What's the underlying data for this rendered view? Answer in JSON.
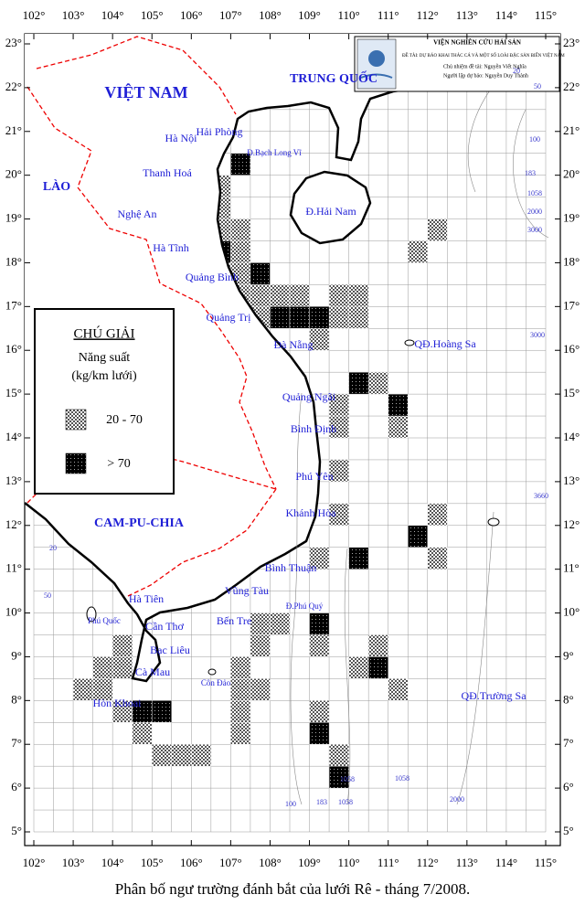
{
  "map": {
    "caption": "Phân bố ngư trường đánh bắt của lưới Rê - tháng 7/2008.",
    "header": {
      "institute": "VIỆN NGHIÊN CỨU HẢI SẢN",
      "project": "ĐỀ TÀI: DỰ BÁO KHAI THÁC CÁ VÀ MỘT SỐ LOÀI ĐẶC SẢN BIỂN VIỆT NAM",
      "lead": "Chủ nhiệm đề tài: Nguyễn Viết Nghĩa",
      "author": "Người lập dự báo: Nguyễn Duy Thành"
    },
    "lon_ticks": [
      {
        "value": 102,
        "label": "102°"
      },
      {
        "value": 103,
        "label": "103°"
      },
      {
        "value": 104,
        "label": "104°"
      },
      {
        "value": 105,
        "label": "105°"
      },
      {
        "value": 106,
        "label": "106°"
      },
      {
        "value": 107,
        "label": "107°"
      },
      {
        "value": 108,
        "label": "108°"
      },
      {
        "value": 109,
        "label": "109°"
      },
      {
        "value": 110,
        "label": "110°"
      },
      {
        "value": 111,
        "label": "111°"
      },
      {
        "value": 112,
        "label": "112°"
      },
      {
        "value": 113,
        "label": "113°"
      },
      {
        "value": 114,
        "label": "114°"
      },
      {
        "value": 115,
        "label": "115°"
      }
    ],
    "lat_ticks": [
      {
        "value": 5,
        "label": "5°"
      },
      {
        "value": 6,
        "label": "6°"
      },
      {
        "value": 7,
        "label": "7°"
      },
      {
        "value": 8,
        "label": "8°"
      },
      {
        "value": 9,
        "label": "9°"
      },
      {
        "value": 10,
        "label": "10°"
      },
      {
        "value": 11,
        "label": "11°"
      },
      {
        "value": 12,
        "label": "12°"
      },
      {
        "value": 13,
        "label": "13°"
      },
      {
        "value": 14,
        "label": "14°"
      },
      {
        "value": 15,
        "label": "15°"
      },
      {
        "value": 16,
        "label": "16°"
      },
      {
        "value": 17,
        "label": "17°"
      },
      {
        "value": 18,
        "label": "18°"
      },
      {
        "value": 19,
        "label": "19°"
      },
      {
        "value": 20,
        "label": "20°"
      },
      {
        "value": 21,
        "label": "21°"
      },
      {
        "value": 22,
        "label": "22°"
      },
      {
        "value": 23,
        "label": "23°"
      }
    ],
    "countries": [
      "VIỆT NAM",
      "TRUNG QUỐC",
      "LÀO",
      "CAM-PU-CHIA"
    ],
    "places": [
      "Hà Nội",
      "Hải Phòng",
      "Đ.Bạch Long Vĩ",
      "Thanh Hoá",
      "Nghệ An",
      "Hà Tĩnh",
      "Quảng Bình",
      "Quảng Trị",
      "Đà Nẵng",
      "Quảng Ngãi",
      "Bình Định",
      "Phú Yên",
      "Khánh Hòa",
      "Bình Thuận",
      "Vũng Tàu",
      "Đ.Phú Quý",
      "Bến Tre",
      "Cần Thơ",
      "Bạc Liêu",
      "Cà Mau",
      "Hà Tiên",
      "Phú Quốc",
      "Hòn Khoai",
      "Côn Đảo",
      "Đ.Hải Nam",
      "QĐ.Hoàng Sa",
      "QĐ.Trường Sa"
    ],
    "depth_labels": [
      20,
      50,
      100,
      183,
      1058,
      2000,
      3000,
      3000,
      3660,
      20,
      50,
      100,
      183,
      1058,
      1058,
      1058,
      2000
    ],
    "legend": {
      "title": "CHÚ GIẢI",
      "subtitle": "Năng suất",
      "unit": "(kg/km lưới)",
      "items": [
        {
          "label": "20 - 70",
          "cells": [
            [
              106.5,
              19.5
            ],
            [
              106.5,
              19
            ],
            [
              106.5,
              18.5
            ],
            [
              107,
              18.5
            ],
            [
              107,
              18
            ],
            [
              106.5,
              17.5
            ],
            [
              107,
              17.5
            ],
            [
              107,
              17
            ],
            [
              107.5,
              17
            ],
            [
              108,
              17
            ],
            [
              108.5,
              17
            ],
            [
              109.5,
              17
            ],
            [
              110,
              17
            ],
            [
              107,
              16.5
            ],
            [
              107.5,
              16.5
            ],
            [
              109.5,
              16.5
            ],
            [
              110,
              16.5
            ],
            [
              109,
              16
            ],
            [
              110.5,
              15
            ],
            [
              109.5,
              14.5
            ],
            [
              109.5,
              14
            ],
            [
              111,
              14
            ],
            [
              109.5,
              13
            ],
            [
              109.5,
              12
            ],
            [
              112,
              12
            ],
            [
              112,
              11
            ],
            [
              109,
              11
            ],
            [
              108,
              9.5
            ],
            [
              107.5,
              9.5
            ],
            [
              107.5,
              9
            ],
            [
              107,
              8.5
            ],
            [
              107,
              8
            ],
            [
              107.5,
              8
            ],
            [
              107,
              7.5
            ],
            [
              107,
              7
            ],
            [
              109,
              9
            ],
            [
              110.5,
              9
            ],
            [
              110,
              8.5
            ],
            [
              111,
              8
            ],
            [
              109,
              7.5
            ],
            [
              109.5,
              6.5
            ],
            [
              104,
              9
            ],
            [
              103.5,
              8.5
            ],
            [
              104,
              8.5
            ],
            [
              103,
              8
            ],
            [
              103.5,
              8
            ],
            [
              104,
              7.5
            ],
            [
              104.5,
              7
            ],
            [
              105,
              6.5
            ],
            [
              105.5,
              6.5
            ],
            [
              106,
              6.5
            ],
            [
              112,
              18.5
            ],
            [
              111.5,
              18
            ]
          ]
        },
        {
          "label": "> 70",
          "cells": [
            [
              107,
              20
            ],
            [
              106.5,
              18
            ],
            [
              107.5,
              17.5
            ],
            [
              108,
              16.5
            ],
            [
              108.5,
              16.5
            ],
            [
              109,
              16.5
            ],
            [
              110,
              15
            ],
            [
              111,
              14.5
            ],
            [
              111.5,
              11.5
            ],
            [
              110,
              11
            ],
            [
              109,
              9.5
            ],
            [
              110.5,
              8.5
            ],
            [
              109,
              7
            ],
            [
              109.5,
              6
            ],
            [
              104.5,
              7.5
            ],
            [
              105,
              7.5
            ]
          ]
        }
      ]
    }
  }
}
